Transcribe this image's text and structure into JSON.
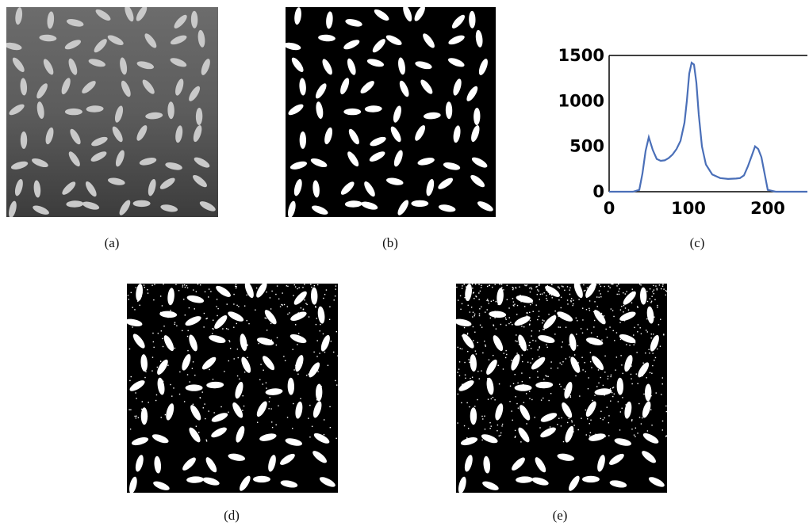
{
  "figure": {
    "captions": {
      "a": "(a)",
      "b": "(b)",
      "c": "(c)",
      "d": "(d)",
      "e": "(e)"
    },
    "panels": {
      "a": {
        "content": "grayscale rice grains on gray background"
      },
      "b": {
        "content": "binary segmentation, clean"
      },
      "d": {
        "content": "binary segmentation with noise"
      },
      "e": {
        "content": "binary segmentation with more noise"
      }
    }
  },
  "chart_data": {
    "type": "line",
    "title": "",
    "xlabel": "",
    "ylabel": "",
    "xlim": [
      0,
      250
    ],
    "ylim": [
      0,
      1500
    ],
    "x_ticks": [
      "0",
      "100",
      "200"
    ],
    "y_ticks": [
      "0",
      "500",
      "1000",
      "1500"
    ],
    "grid": false,
    "line_color": "#4a6fb8",
    "series": [
      {
        "x": [
          0,
          30,
          38,
          42,
          46,
          50,
          55,
          60,
          65,
          70,
          75,
          80,
          85,
          90,
          95,
          98,
          101,
          104,
          107,
          110,
          113,
          117,
          122,
          130,
          140,
          150,
          160,
          165,
          170,
          175,
          180,
          184,
          188,
          192,
          196,
          200,
          210,
          250
        ],
        "y": [
          0,
          0,
          20,
          200,
          450,
          600,
          460,
          360,
          340,
          345,
          370,
          410,
          470,
          560,
          760,
          1000,
          1300,
          1420,
          1400,
          1200,
          850,
          500,
          300,
          190,
          150,
          140,
          145,
          150,
          180,
          280,
          400,
          500,
          470,
          380,
          200,
          20,
          0,
          0
        ]
      }
    ]
  }
}
